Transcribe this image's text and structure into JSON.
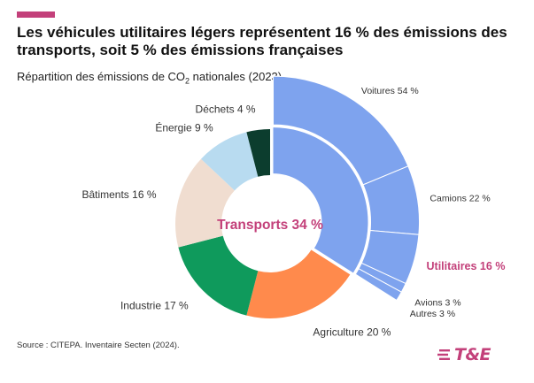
{
  "header": {
    "title": "Les véhicules utilitaires légers représentent 16 % des émissions des transports, soit  5 % des émissions françaises",
    "subtitle_main": "Répartition des émissions de CO",
    "subtitle_sub": "2",
    "subtitle_end": " nationales (2023)"
  },
  "chart_data": {
    "type": "pie",
    "variant": "donut-with-exploded-ring",
    "center_label": "Transports 34 %",
    "sectors": [
      {
        "name": "Transports",
        "value": 34,
        "color": "#7ea3ee"
      },
      {
        "name": "Agriculture",
        "value": 20,
        "label": "Agriculture 20 %",
        "color": "#ff8a4c"
      },
      {
        "name": "Industrie",
        "value": 17,
        "label": "Industrie 17 %",
        "color": "#0f9a5c"
      },
      {
        "name": "Bâtiments",
        "value": 16,
        "label": "Bâtiments 16 %",
        "color": "#f0ddd0"
      },
      {
        "name": "Énergie",
        "value": 9,
        "label": "Énergie 9 %",
        "color": "#b8dbf0"
      },
      {
        "name": "Déchets",
        "value": 4,
        "label": "Déchets 4 %",
        "color": "#0c3d2e"
      }
    ],
    "transport_breakdown": [
      {
        "name": "Voitures",
        "value": 54,
        "label": "Voitures 54 %"
      },
      {
        "name": "Camions",
        "value": 22,
        "label": "Camions 22 %"
      },
      {
        "name": "Utilitaires",
        "value": 16,
        "label": "Utilitaires 16 %",
        "highlight": true
      },
      {
        "name": "Avions",
        "value": 3,
        "label": "Avions 3 %"
      },
      {
        "name": "Autres",
        "value": 3,
        "label": "Autres 3 %"
      }
    ],
    "ring_color": "#7ea3ee",
    "highlight_color": "#c3407a"
  },
  "footer": {
    "source": "Source : CITEPA. Inventaire Secten (2024).",
    "logo_text": "T&E"
  }
}
